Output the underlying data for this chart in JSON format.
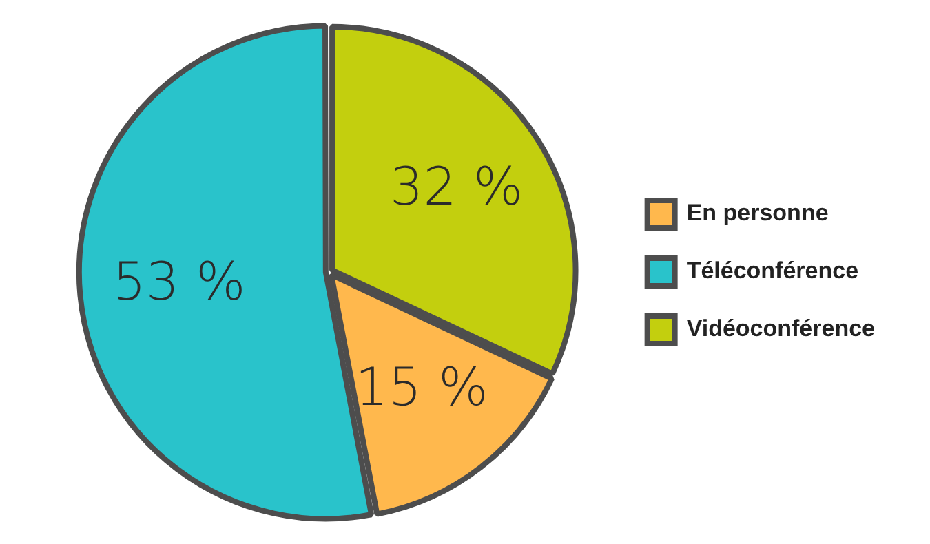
{
  "chart_data": {
    "type": "pie",
    "categories": [
      "En personne",
      "Téléconférence",
      "Vidéoconférence"
    ],
    "values": [
      15,
      53,
      32
    ],
    "colors": [
      "#ffb84d",
      "#29c3cb",
      "#c3cf0e"
    ],
    "value_labels": [
      "15 %",
      "53 %",
      "32 %"
    ],
    "legend": "right"
  }
}
